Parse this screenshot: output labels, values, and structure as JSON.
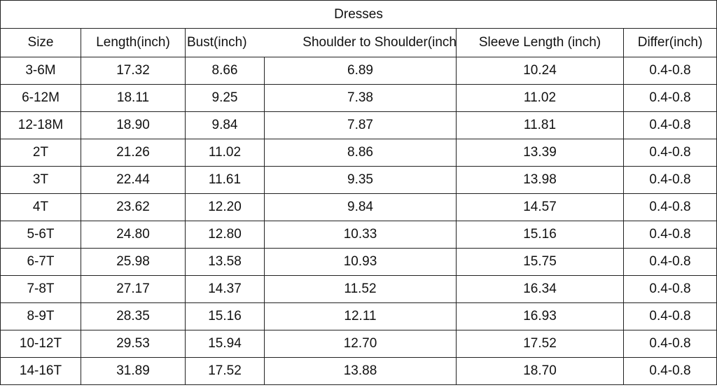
{
  "title": "Dresses",
  "headers": [
    "Size",
    "Length(inch)",
    "Bust(inch)",
    "Shoulder to Shoulder(inch",
    "Sleeve Length (inch)",
    "Differ(inch)"
  ],
  "rows": [
    [
      "3-6M",
      "17.32",
      "8.66",
      "6.89",
      "10.24",
      "0.4-0.8"
    ],
    [
      "6-12M",
      "18.11",
      "9.25",
      "7.38",
      "11.02",
      "0.4-0.8"
    ],
    [
      "12-18M",
      "18.90",
      "9.84",
      "7.87",
      "11.81",
      "0.4-0.8"
    ],
    [
      "2T",
      "21.26",
      "11.02",
      "8.86",
      "13.39",
      "0.4-0.8"
    ],
    [
      "3T",
      "22.44",
      "11.61",
      "9.35",
      "13.98",
      "0.4-0.8"
    ],
    [
      "4T",
      "23.62",
      "12.20",
      "9.84",
      "14.57",
      "0.4-0.8"
    ],
    [
      "5-6T",
      "24.80",
      "12.80",
      "10.33",
      "15.16",
      "0.4-0.8"
    ],
    [
      "6-7T",
      "25.98",
      "13.58",
      "10.93",
      "15.75",
      "0.4-0.8"
    ],
    [
      "7-8T",
      "27.17",
      "14.37",
      "11.52",
      "16.34",
      "0.4-0.8"
    ],
    [
      "8-9T",
      "28.35",
      "15.16",
      "12.11",
      "16.93",
      "0.4-0.8"
    ],
    [
      "10-12T",
      "29.53",
      "15.94",
      "12.70",
      "17.52",
      "0.4-0.8"
    ],
    [
      "14-16T",
      "31.89",
      "17.52",
      "13.88",
      "18.70",
      "0.4-0.8"
    ]
  ]
}
